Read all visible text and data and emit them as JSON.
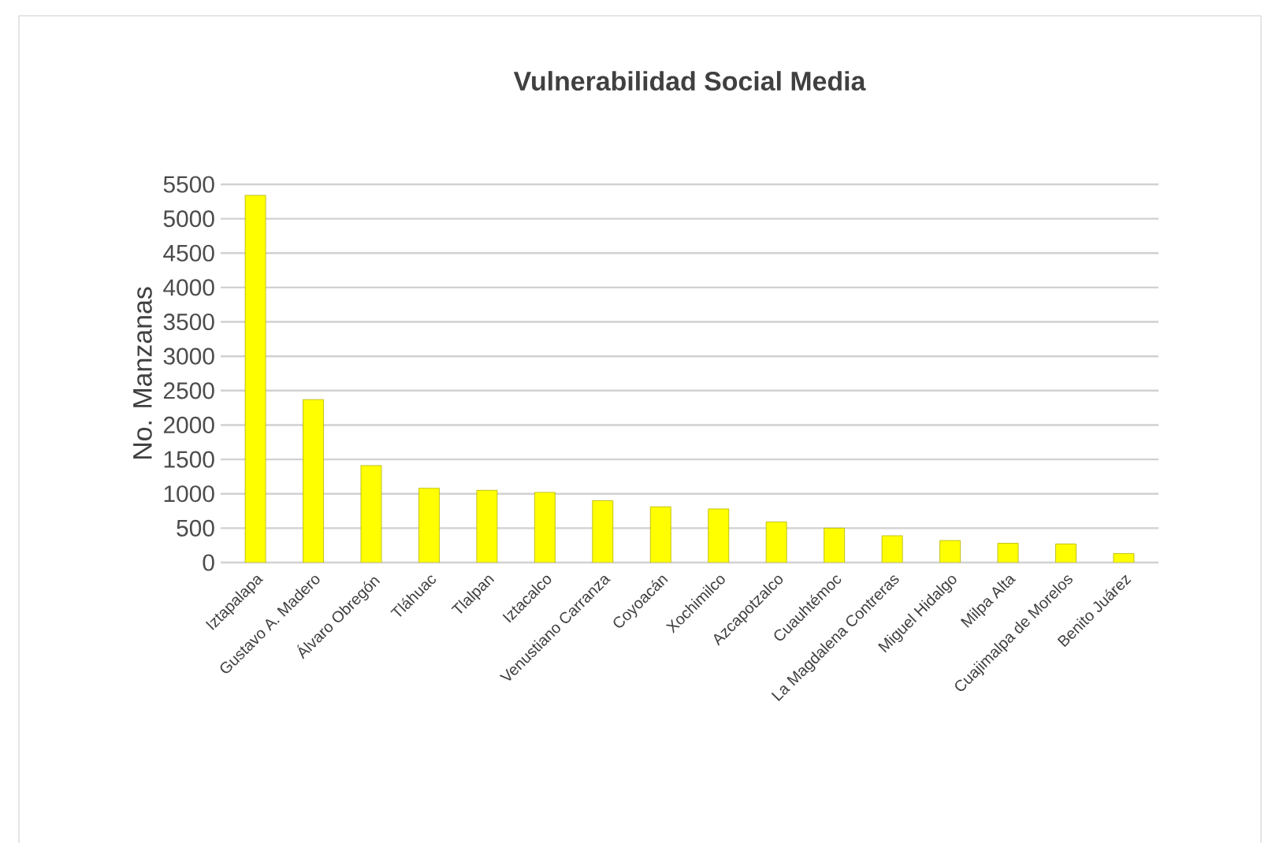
{
  "chart_data": {
    "type": "bar",
    "title": "Vulnerabilidad Social Media",
    "ylabel": "No. Manzanas",
    "categories": [
      "Iztapalapa",
      "Gustavo A. Madero",
      "Álvaro Obregón",
      "Tláhuac",
      "Tlalpan",
      "Iztacalco",
      "Venustiano Carranza",
      "Coyoacán",
      "Xochimilco",
      "Azcapotzalco",
      "Cuauhtémoc",
      "La Magdalena Contreras",
      "Miguel Hidalgo",
      "Milpa Alta",
      "Cuajimalpa de Morelos",
      "Benito Juárez"
    ],
    "values": [
      5340,
      2370,
      1410,
      1080,
      1050,
      1020,
      900,
      810,
      780,
      590,
      500,
      390,
      320,
      280,
      270,
      130
    ],
    "color": "#ffff00",
    "ylim": [
      0,
      5500
    ],
    "yticks": [
      0,
      500,
      1000,
      1500,
      2000,
      2500,
      3000,
      3500,
      4000,
      4500,
      5000,
      5500
    ],
    "grid": "y"
  }
}
